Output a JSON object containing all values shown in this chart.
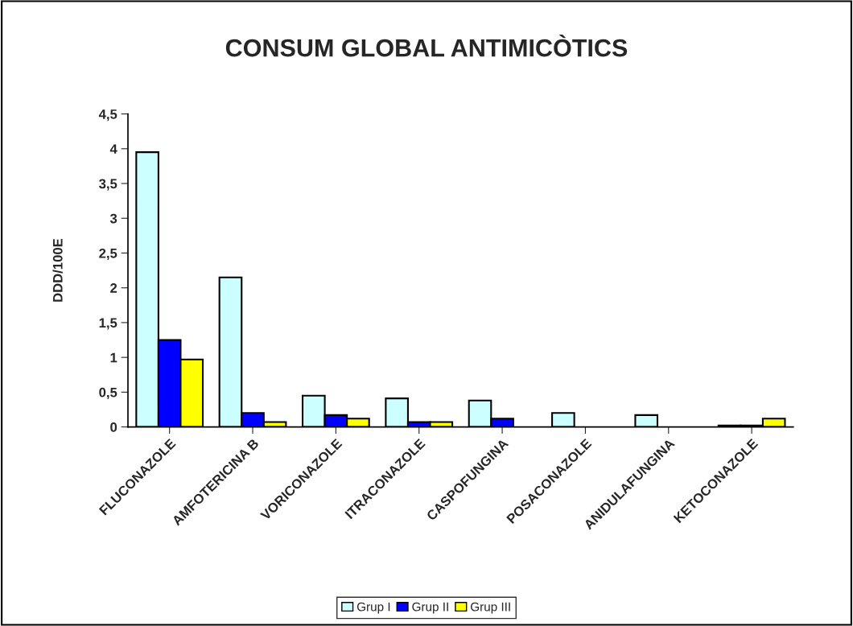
{
  "chart_data": {
    "type": "bar",
    "title": "CONSUM GLOBAL ANTIMICÒTICS",
    "ylabel": "DDD/100E",
    "categories": [
      "FLUCONAZOLE",
      "AMFOTERICINA B",
      "VORICONAZOLE",
      "ITRACONAZOLE",
      "CASPOFUNGINA",
      "POSACONAZOLE",
      "ANIDULAFUNGINA",
      "KETOCONAZOLE"
    ],
    "series": [
      {
        "name": "Grup I",
        "color": "#ccffff",
        "values": [
          3.95,
          2.15,
          0.45,
          0.41,
          0.38,
          0.2,
          0.17,
          0.02
        ]
      },
      {
        "name": "Grup II",
        "color": "#0000ff",
        "values": [
          1.25,
          0.2,
          0.17,
          0.07,
          0.12,
          null,
          null,
          0.02
        ]
      },
      {
        "name": "Grup III",
        "color": "#ffff00",
        "values": [
          0.97,
          0.07,
          0.12,
          0.07,
          null,
          null,
          null,
          0.12
        ]
      }
    ],
    "ylim": [
      0,
      4.5
    ],
    "yticks": [
      0,
      {
        "value": 0.5,
        "label": "0,5"
      },
      1,
      {
        "value": 1.5,
        "label": "1,5"
      },
      2,
      {
        "value": 2.5,
        "label": "2,5"
      },
      3,
      {
        "value": 3.5,
        "label": "3,5"
      },
      4,
      {
        "value": 4.5,
        "label": "4,5"
      }
    ],
    "grid": false,
    "legend": "bottom"
  }
}
